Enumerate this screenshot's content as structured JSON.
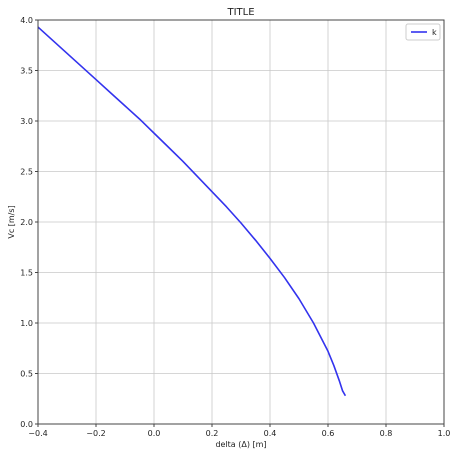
{
  "chart_data": {
    "type": "line",
    "title": "TITLE",
    "xlabel": "delta (Δ) [m]",
    "ylabel": "Vc [m/s]",
    "xlim": [
      -0.4,
      1.0
    ],
    "ylim": [
      0.0,
      4.0
    ],
    "xticks": [
      "−0.4",
      "−0.2",
      "0.0",
      "0.2",
      "0.4",
      "0.6",
      "0.8",
      "1.0"
    ],
    "xtick_values": [
      -0.4,
      -0.2,
      0.0,
      0.2,
      0.4,
      0.6,
      0.8,
      1.0
    ],
    "yticks": [
      "0.0",
      "0.5",
      "1.0",
      "1.5",
      "2.0",
      "2.5",
      "3.0",
      "3.5",
      "4.0"
    ],
    "ytick_values": [
      0.0,
      0.5,
      1.0,
      1.5,
      2.0,
      2.5,
      3.0,
      3.5,
      4.0
    ],
    "grid": true,
    "legend_position": "top-right",
    "series": [
      {
        "name": "k",
        "color": "#3333ee",
        "x": [
          -0.4,
          -0.35,
          -0.3,
          -0.25,
          -0.2,
          -0.15,
          -0.1,
          -0.05,
          0.0,
          0.05,
          0.1,
          0.15,
          0.2,
          0.25,
          0.3,
          0.35,
          0.4,
          0.45,
          0.5,
          0.55,
          0.6,
          0.62,
          0.64,
          0.65,
          0.66
        ],
        "y": [
          3.93,
          3.8,
          3.67,
          3.54,
          3.41,
          3.28,
          3.15,
          3.02,
          2.88,
          2.74,
          2.6,
          2.45,
          2.3,
          2.15,
          1.99,
          1.82,
          1.64,
          1.45,
          1.24,
          1.0,
          0.72,
          0.58,
          0.42,
          0.33,
          0.28
        ]
      }
    ]
  }
}
